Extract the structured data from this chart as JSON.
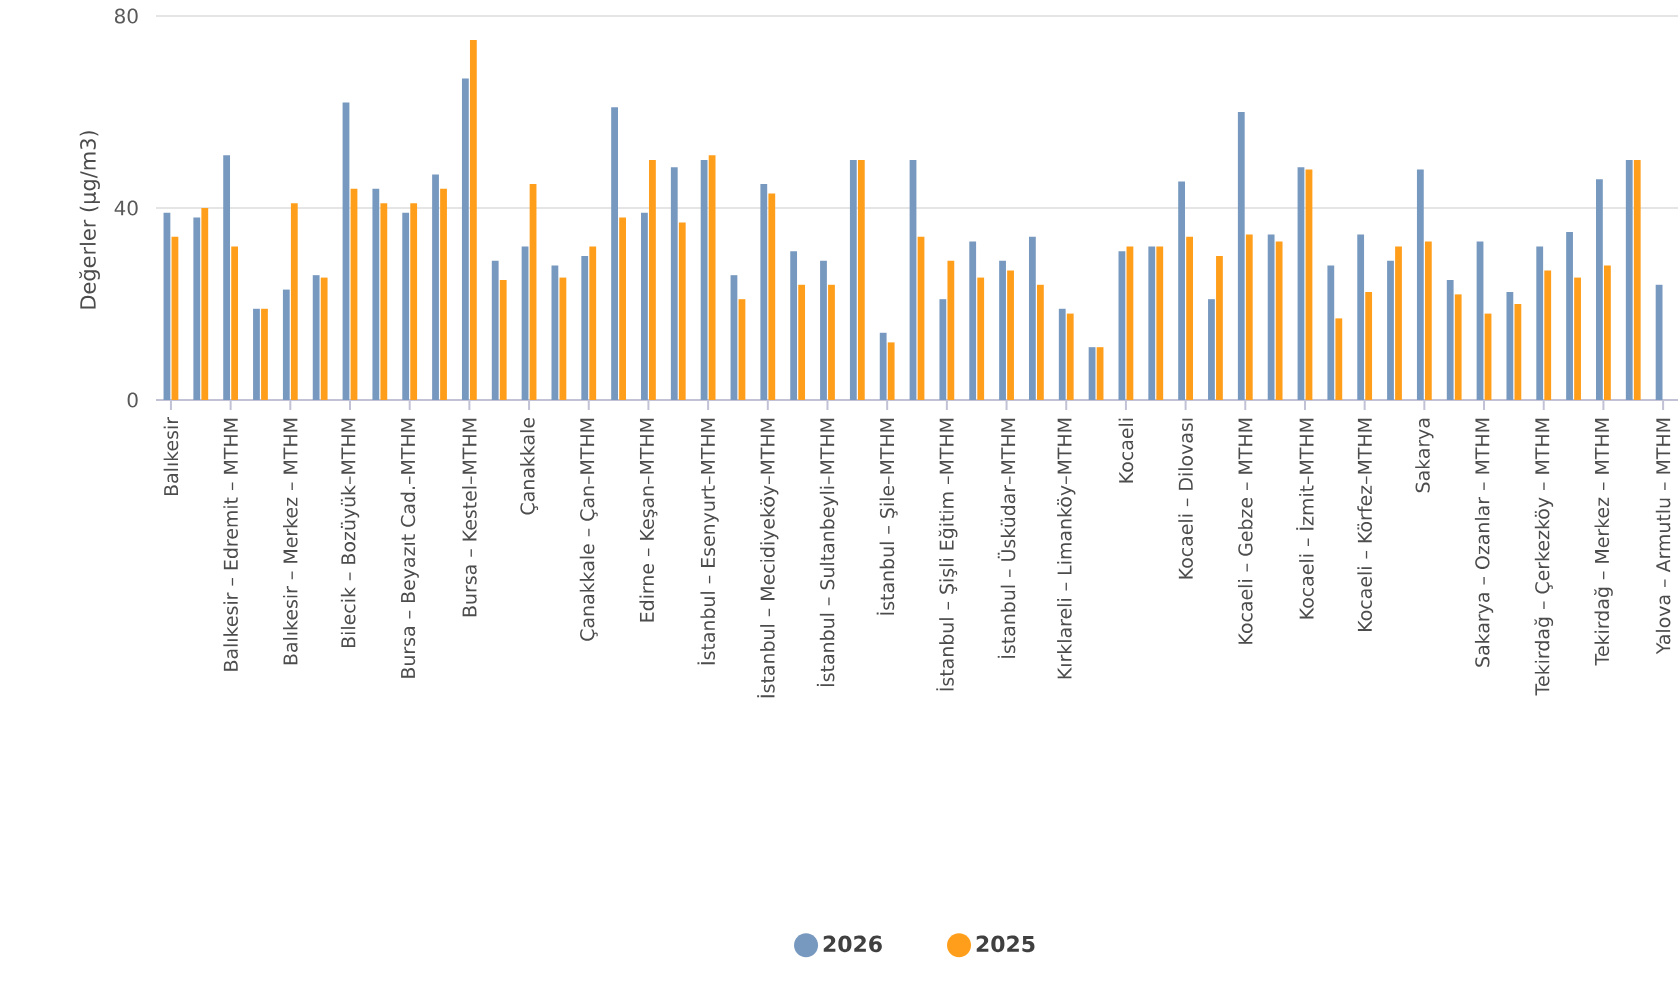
{
  "chart_data": {
    "type": "bar",
    "ylabel": "Değerler (µg/m3)",
    "ylim": [
      0,
      80
    ],
    "yticks": [
      0,
      40,
      80
    ],
    "grid": "y",
    "legend": "bottom",
    "categories": [
      "Balıkesir",
      null,
      "Balıkesir – Edremit – MTHM",
      null,
      "Balıkesir – Merkez – MTHM",
      null,
      "Bilecik – Bozüyük–MTHM",
      null,
      "Bursa – Beyazıt Cad.–MTHM",
      null,
      "Bursa – Kestel–MTHM",
      null,
      "Çanakkale",
      null,
      "Çanakkale – Çan–MTHM",
      null,
      "Edirne – Keşan–MTHM",
      null,
      "İstanbul – Esenyurt–MTHM",
      null,
      "İstanbul – Mecidiyeköy–MTHM",
      null,
      "İstanbul – Sultanbeyli–MTHM",
      null,
      "İstanbul – Şile–MTHM",
      null,
      "İstanbul – Şişli Eğitim –MTHM",
      null,
      "İstanbul – Üsküdar–MTHM",
      null,
      "Kırklareli – Limanköy–MTHM",
      null,
      "Kocaeli",
      null,
      "Kocaeli – Dilovası",
      null,
      "Kocaeli – Gebze – MTHM",
      null,
      "Kocaeli – İzmit–MTHM",
      null,
      "Kocaeli – Körfez–MTHM",
      null,
      "Sakarya",
      null,
      "Sakarya – Ozanlar – MTHM",
      null,
      "Tekirdağ – Çerkezköy – MTHM",
      null,
      "Tekirdağ – Merkez – MTHM",
      null,
      "Yalova – Armutlu – MTHM"
    ],
    "series": [
      {
        "name": "2026",
        "color": "#7798bf",
        "values": [
          39,
          38,
          51,
          19,
          23,
          26,
          62,
          44,
          39,
          47,
          67,
          29,
          32,
          28,
          30,
          61,
          39,
          48.5,
          50,
          26,
          45,
          31,
          29,
          50,
          14,
          50,
          21,
          33,
          29,
          34,
          19,
          11,
          31,
          32,
          45.5,
          21,
          60,
          34.5,
          48.5,
          28,
          34.5,
          29,
          48,
          25,
          33,
          22.5,
          32,
          35,
          46,
          50,
          24
        ]
      },
      {
        "name": "2025",
        "color": "#ff9e1b",
        "values": [
          34,
          40,
          32,
          19,
          41,
          25.5,
          44,
          41,
          41,
          44,
          75,
          25,
          45,
          25.5,
          32,
          38,
          50,
          37,
          51,
          21,
          43,
          24,
          24,
          50,
          12,
          34,
          29,
          25.5,
          27,
          24,
          18,
          11,
          32,
          32,
          34,
          30,
          34.5,
          33,
          48,
          17,
          22.5,
          32,
          33,
          22,
          18,
          20,
          27,
          25.5,
          28,
          50,
          null
        ]
      }
    ]
  }
}
